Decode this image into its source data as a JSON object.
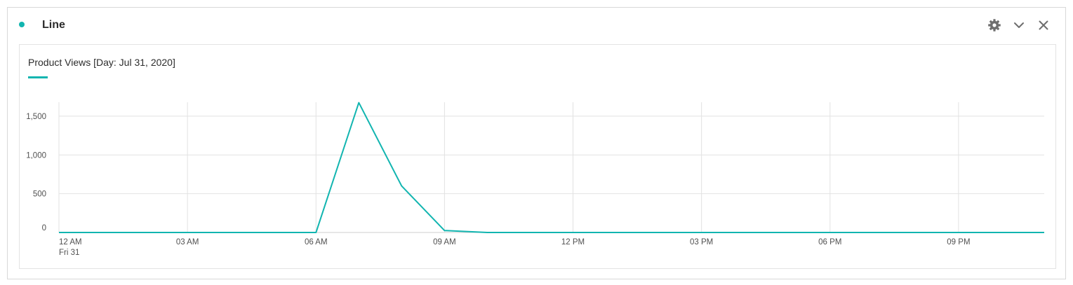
{
  "panel": {
    "title": "Line",
    "status_color": "#12b5b0",
    "actions": [
      {
        "name": "settings",
        "icon": "gear-icon"
      },
      {
        "name": "collapse",
        "icon": "chevron-down-icon"
      },
      {
        "name": "close",
        "icon": "close-icon"
      }
    ]
  },
  "chart_data": {
    "type": "line",
    "title": "",
    "xlabel": "",
    "ylabel": "",
    "legend_position": "top-left",
    "grid": true,
    "colors": {
      "line": "#12b5b0",
      "grid": "#e2e2e2",
      "axis": "#cfcfcf"
    },
    "x_tick_labels": [
      "12 AM",
      "03 AM",
      "06 AM",
      "09 AM",
      "12 PM",
      "03 PM",
      "06 PM",
      "09 PM"
    ],
    "x_tick_sublabel": "Fri 31",
    "y_tick_labels": [
      "0",
      "500",
      "1,000",
      "1,500"
    ],
    "y_ticks": [
      0,
      500,
      1000,
      1500
    ],
    "ylim": [
      0,
      1680
    ],
    "x_hours": [
      0,
      1,
      2,
      3,
      4,
      5,
      6,
      7,
      8,
      9,
      10,
      11,
      12,
      13,
      14,
      15,
      16,
      17,
      18,
      19,
      20,
      21,
      22,
      23
    ],
    "series": [
      {
        "name": "Product Views [Day: Jul 31, 2020]",
        "values": [
          0,
          0,
          0,
          0,
          0,
          0,
          0,
          1675,
          600,
          25,
          0,
          0,
          0,
          0,
          0,
          0,
          0,
          0,
          0,
          0,
          0,
          0,
          0,
          0
        ]
      }
    ]
  }
}
